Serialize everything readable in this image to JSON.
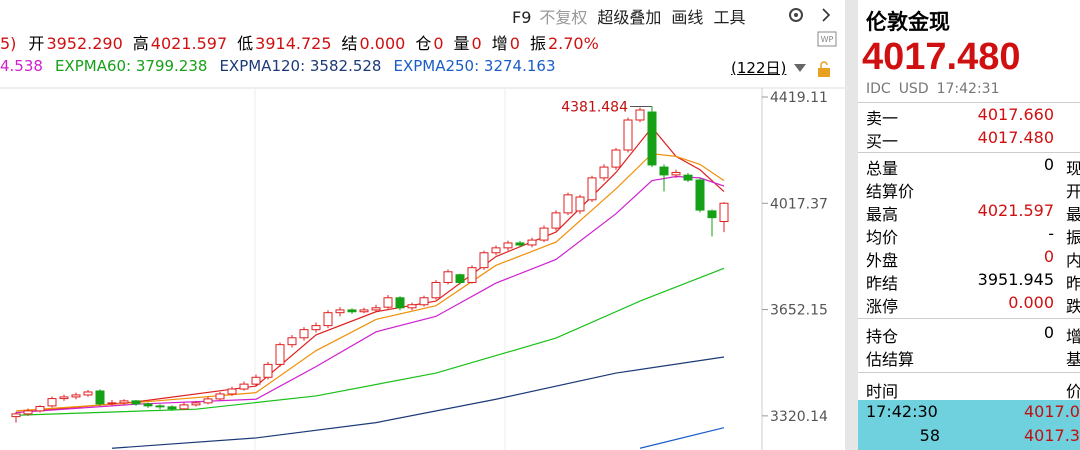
{
  "toolbar": {
    "items": [
      "F9",
      "不复权",
      "超级叠加",
      "画线",
      "工具"
    ]
  },
  "quote_bar": {
    "lead": "5)",
    "fields": [
      {
        "label": "开",
        "value": "3952.290"
      },
      {
        "label": "高",
        "value": "4021.597"
      },
      {
        "label": "低",
        "value": "3914.725"
      },
      {
        "label": "结",
        "value": "0.000"
      },
      {
        "label": "仓",
        "value": "0"
      },
      {
        "label": "量",
        "value": "0"
      },
      {
        "label": "增",
        "value": "0"
      },
      {
        "label": "振",
        "value": "2.70%"
      }
    ]
  },
  "indicator_bar": {
    "items": [
      {
        "text": "4.538",
        "color": "#d020d0"
      },
      {
        "text": "EXPMA60: 3799.238",
        "color": "#18a018"
      },
      {
        "text": "EXPMA120: 3582.528",
        "color": "#1c3a78"
      },
      {
        "text": "EXPMA250: 3274.163",
        "color": "#1a5cc8"
      }
    ],
    "period": "(122日)"
  },
  "chart_data": {
    "type": "candlestick",
    "log_scale": true,
    "ylim": [
      3220,
      4455
    ],
    "yticks": [
      4419.11,
      4017.37,
      3652.15,
      3320.14
    ],
    "up_color": "#e02020",
    "down_color": "#15a015",
    "ohlc": [
      [
        3318,
        3332,
        3300,
        3326
      ],
      [
        3326,
        3342,
        3320,
        3335
      ],
      [
        3335,
        3352,
        3330,
        3348
      ],
      [
        3350,
        3378,
        3345,
        3372
      ],
      [
        3372,
        3384,
        3365,
        3377
      ],
      [
        3377,
        3390,
        3370,
        3383
      ],
      [
        3383,
        3398,
        3378,
        3392
      ],
      [
        3395,
        3400,
        3350,
        3356
      ],
      [
        3356,
        3368,
        3350,
        3359
      ],
      [
        3359,
        3370,
        3352,
        3365
      ],
      [
        3365,
        3368,
        3350,
        3356
      ],
      [
        3356,
        3360,
        3344,
        3350
      ],
      [
        3350,
        3355,
        3340,
        3347
      ],
      [
        3347,
        3352,
        3335,
        3341
      ],
      [
        3341,
        3360,
        3338,
        3353
      ],
      [
        3353,
        3365,
        3348,
        3359
      ],
      [
        3359,
        3378,
        3355,
        3371
      ],
      [
        3371,
        3392,
        3366,
        3386
      ],
      [
        3386,
        3408,
        3380,
        3401
      ],
      [
        3401,
        3424,
        3396,
        3416
      ],
      [
        3416,
        3445,
        3410,
        3437
      ],
      [
        3437,
        3485,
        3430,
        3477
      ],
      [
        3477,
        3546,
        3470,
        3539
      ],
      [
        3539,
        3570,
        3530,
        3561
      ],
      [
        3561,
        3595,
        3552,
        3587
      ],
      [
        3587,
        3610,
        3578,
        3600
      ],
      [
        3600,
        3650,
        3592,
        3642
      ],
      [
        3642,
        3660,
        3630,
        3651
      ],
      [
        3651,
        3656,
        3638,
        3645
      ],
      [
        3645,
        3658,
        3640,
        3651
      ],
      [
        3651,
        3668,
        3645,
        3658
      ],
      [
        3660,
        3700,
        3655,
        3691
      ],
      [
        3691,
        3696,
        3650,
        3658
      ],
      [
        3658,
        3675,
        3650,
        3668
      ],
      [
        3668,
        3698,
        3662,
        3691
      ],
      [
        3691,
        3750,
        3685,
        3742
      ],
      [
        3742,
        3786,
        3735,
        3778
      ],
      [
        3768,
        3772,
        3735,
        3742
      ],
      [
        3742,
        3800,
        3738,
        3792
      ],
      [
        3792,
        3850,
        3785,
        3843
      ],
      [
        3843,
        3868,
        3835,
        3860
      ],
      [
        3860,
        3885,
        3850,
        3877
      ],
      [
        3877,
        3884,
        3862,
        3870
      ],
      [
        3870,
        3895,
        3862,
        3887
      ],
      [
        3887,
        3938,
        3880,
        3929
      ],
      [
        3929,
        3992,
        3920,
        3983
      ],
      [
        3983,
        4056,
        3975,
        4048
      ],
      [
        3990,
        4048,
        3980,
        4040
      ],
      [
        4030,
        4118,
        4022,
        4110
      ],
      [
        4110,
        4160,
        4100,
        4150
      ],
      [
        4150,
        4222,
        4140,
        4214
      ],
      [
        4214,
        4338,
        4205,
        4329
      ],
      [
        4329,
        4378,
        4320,
        4368
      ],
      [
        4360,
        4381.484,
        4150,
        4158
      ],
      [
        4150,
        4160,
        4060,
        4121
      ],
      [
        4121,
        4140,
        4110,
        4130
      ],
      [
        4120,
        4128,
        4095,
        4102
      ],
      [
        4102,
        4110,
        3985,
        3993
      ],
      [
        3990,
        3995,
        3900,
        3966
      ],
      [
        3952.29,
        4021.597,
        3914.725,
        4017.48
      ]
    ],
    "lines": [
      {
        "color": "#e02020",
        "x": [
          0,
          10,
          20,
          25,
          30,
          35,
          40,
          45,
          50,
          53,
          55,
          57,
          59
        ],
        "values": [
          3330,
          3362,
          3410,
          3570,
          3645,
          3680,
          3830,
          3915,
          4130,
          4300,
          4190,
          4140,
          4060
        ]
      },
      {
        "color": "#f0900a",
        "x": [
          0,
          10,
          20,
          25,
          30,
          35,
          40,
          45,
          50,
          53,
          55,
          57,
          59
        ],
        "values": [
          3335,
          3360,
          3390,
          3520,
          3620,
          3665,
          3800,
          3880,
          4070,
          4200,
          4190,
          4160,
          4100
        ]
      },
      {
        "color": "#d020d0",
        "x": [
          0,
          10,
          20,
          25,
          30,
          35,
          40,
          45,
          50,
          53,
          55,
          57,
          59
        ],
        "values": [
          3330,
          3355,
          3370,
          3470,
          3580,
          3630,
          3740,
          3820,
          3980,
          4100,
          4115,
          4110,
          4080
        ]
      },
      {
        "color": "#18c018",
        "x": [
          0,
          15,
          25,
          35,
          45,
          52,
          59
        ],
        "values": [
          3322,
          3340,
          3380,
          3450,
          3560,
          3680,
          3790
        ]
      },
      {
        "color": "#1c3a78",
        "x": [
          8,
          20,
          30,
          40,
          50,
          59
        ],
        "values": [
          3225,
          3255,
          3300,
          3370,
          3450,
          3500
        ]
      },
      {
        "color": "#1a5cc8",
        "x": [
          52,
          59
        ],
        "values": [
          3225,
          3285
        ]
      }
    ],
    "max_label": 4381.484
  },
  "panel": {
    "title": "伦敦金现",
    "price": "4017.480",
    "meta": [
      "IDC",
      "USD",
      "17:42:31"
    ],
    "book": [
      {
        "label": "卖一",
        "value": "4017.660"
      },
      {
        "label": "买一",
        "value": "4017.480"
      }
    ],
    "stats": [
      {
        "label": "总量",
        "value": "0",
        "extra": "现",
        "color": "#000"
      },
      {
        "label": "结算价",
        "value": "",
        "extra": "开",
        "color": "#000"
      },
      {
        "label": "最高",
        "value": "4021.597",
        "extra": "最",
        "color": "#d01010"
      },
      {
        "label": "均价",
        "value": "-",
        "extra": "振",
        "color": "#000"
      },
      {
        "label": "外盘",
        "value": "0",
        "extra": "内",
        "color": "#d01010"
      },
      {
        "label": "昨结",
        "value": "3951.945",
        "extra": "昨",
        "color": "#000"
      },
      {
        "label": "涨停",
        "value": "0.000",
        "extra": "跌",
        "color": "#d01010"
      }
    ],
    "stats2": [
      {
        "label": "持仓",
        "value": "0",
        "extra": "增"
      },
      {
        "label": "估结算",
        "value": "",
        "extra": "基"
      }
    ],
    "ticks_header": [
      "时间",
      "价"
    ],
    "ticks": [
      [
        "17:42:30",
        "4017.0"
      ],
      [
        "58",
        "4017.3"
      ]
    ]
  }
}
